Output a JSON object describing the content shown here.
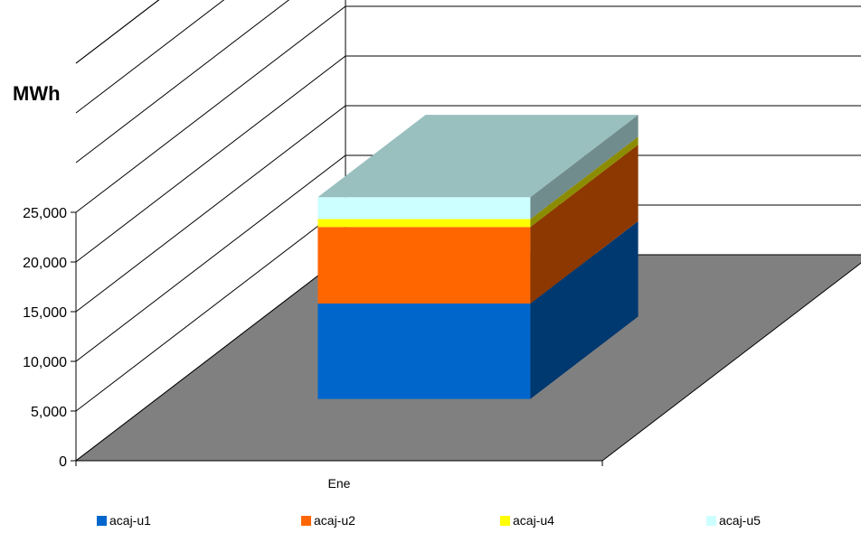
{
  "chart_data": {
    "type": "bar",
    "stacked": true,
    "three_d": true,
    "title": "",
    "xlabel": "",
    "ylabel": "MWh",
    "ylim": [
      0,
      25000
    ],
    "y_ticks": [
      "0",
      "5,000",
      "10,000",
      "15,000",
      "20,000",
      "25,000"
    ],
    "categories": [
      "Ene"
    ],
    "series": [
      {
        "name": "acaj-u1",
        "values": [
          9600
        ],
        "color": "#0066CC"
      },
      {
        "name": "acaj-u2",
        "values": [
          7700
        ],
        "color": "#FF6600"
      },
      {
        "name": "acaj-u4",
        "values": [
          800
        ],
        "color": "#FFFF00"
      },
      {
        "name": "acaj-u5",
        "values": [
          2200
        ],
        "color": "#CCFFFF"
      }
    ],
    "grid": true,
    "legend_position": "bottom",
    "floor_color": "#808080"
  }
}
